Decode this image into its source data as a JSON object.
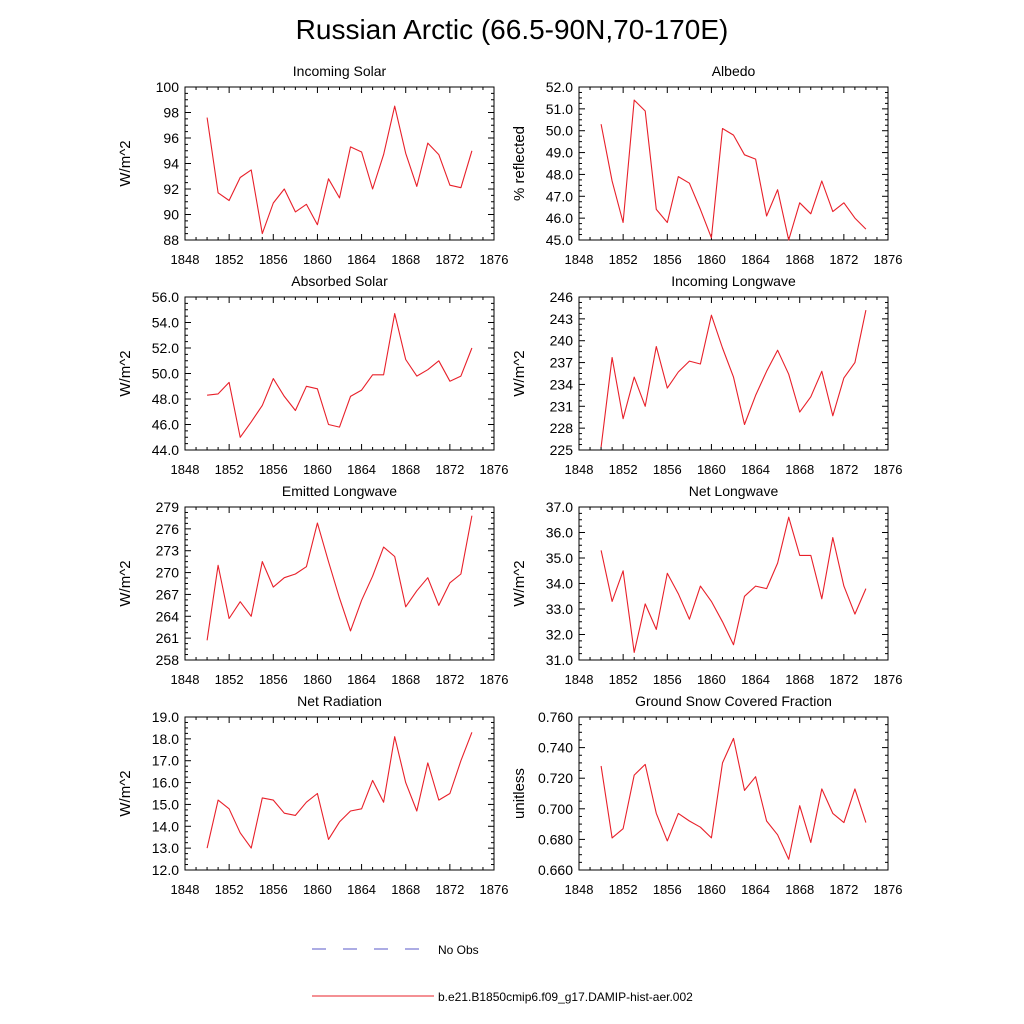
{
  "title": "Russian Arctic (66.5-90N,70-170E)",
  "legend": [
    {
      "label": "No Obs",
      "color": "#5a5ac8",
      "dash": true
    },
    {
      "label": "b.e21.B1850cmip6.f09_g17.DAMIP-hist-aer.002",
      "color": "#e8202a",
      "dash": false
    }
  ],
  "chart_data": [
    {
      "type": "line",
      "title": "Incoming Solar",
      "ylabel": "W/m^2",
      "xlim": [
        1848,
        1876
      ],
      "xticks": [
        1848,
        1852,
        1856,
        1860,
        1864,
        1868,
        1872,
        1876
      ],
      "ylim": [
        88,
        100
      ],
      "yticks": [
        88,
        90,
        92,
        94,
        96,
        98,
        100
      ],
      "ytick_labels": [
        "88",
        "90",
        "92",
        "94",
        "96",
        "98",
        "100"
      ],
      "x": [
        1850,
        1851,
        1852,
        1853,
        1854,
        1855,
        1856,
        1857,
        1858,
        1859,
        1860,
        1861,
        1862,
        1863,
        1864,
        1865,
        1866,
        1867,
        1868,
        1869,
        1870,
        1871,
        1872,
        1873,
        1874
      ],
      "values": [
        97.6,
        91.7,
        91.1,
        92.9,
        93.5,
        88.5,
        90.9,
        92.0,
        90.2,
        90.8,
        89.2,
        92.8,
        91.3,
        95.3,
        94.9,
        92.0,
        94.7,
        98.5,
        94.8,
        92.2,
        95.6,
        94.7,
        92.3,
        92.1,
        95.0
      ]
    },
    {
      "type": "line",
      "title": "Albedo",
      "ylabel": "% reflected",
      "xlim": [
        1848,
        1876
      ],
      "xticks": [
        1848,
        1852,
        1856,
        1860,
        1864,
        1868,
        1872,
        1876
      ],
      "ylim": [
        45,
        52
      ],
      "yticks": [
        45,
        46,
        47,
        48,
        49,
        50,
        51,
        52
      ],
      "ytick_labels": [
        "45.0",
        "46.0",
        "47.0",
        "48.0",
        "49.0",
        "50.0",
        "51.0",
        "52.0"
      ],
      "x": [
        1850,
        1851,
        1852,
        1853,
        1854,
        1855,
        1856,
        1857,
        1858,
        1859,
        1860,
        1861,
        1862,
        1863,
        1864,
        1865,
        1866,
        1867,
        1868,
        1869,
        1870,
        1871,
        1872,
        1873,
        1874
      ],
      "values": [
        50.3,
        47.7,
        45.8,
        51.4,
        50.9,
        46.4,
        45.8,
        47.9,
        47.6,
        46.4,
        45.1,
        50.1,
        49.8,
        48.9,
        48.7,
        46.1,
        47.3,
        45.0,
        46.7,
        46.2,
        47.7,
        46.3,
        46.7,
        46.0,
        45.5
      ]
    },
    {
      "type": "line",
      "title": "Absorbed Solar",
      "ylabel": "W/m^2",
      "xlim": [
        1848,
        1876
      ],
      "xticks": [
        1848,
        1852,
        1856,
        1860,
        1864,
        1868,
        1872,
        1876
      ],
      "ylim": [
        44,
        56
      ],
      "yticks": [
        44,
        46,
        48,
        50,
        52,
        54,
        56
      ],
      "ytick_labels": [
        "44.0",
        "46.0",
        "48.0",
        "50.0",
        "52.0",
        "54.0",
        "56.0"
      ],
      "x": [
        1850,
        1851,
        1852,
        1853,
        1854,
        1855,
        1856,
        1857,
        1858,
        1859,
        1860,
        1861,
        1862,
        1863,
        1864,
        1865,
        1866,
        1867,
        1868,
        1869,
        1870,
        1871,
        1872,
        1873,
        1874
      ],
      "values": [
        48.3,
        48.4,
        49.3,
        45.0,
        46.2,
        47.5,
        49.6,
        48.2,
        47.1,
        49.0,
        48.8,
        46.0,
        45.8,
        48.2,
        48.7,
        49.9,
        49.9,
        54.7,
        51.1,
        49.8,
        50.3,
        51.0,
        49.4,
        49.8,
        52.0
      ]
    },
    {
      "type": "line",
      "title": "Incoming Longwave",
      "ylabel": "W/m^2",
      "xlim": [
        1848,
        1876
      ],
      "xticks": [
        1848,
        1852,
        1856,
        1860,
        1864,
        1868,
        1872,
        1876
      ],
      "ylim": [
        225,
        246
      ],
      "yticks": [
        225,
        228,
        231,
        234,
        237,
        240,
        243,
        246
      ],
      "ytick_labels": [
        "225",
        "228",
        "231",
        "234",
        "237",
        "240",
        "243",
        "246"
      ],
      "x": [
        1850,
        1851,
        1852,
        1853,
        1854,
        1855,
        1856,
        1857,
        1858,
        1859,
        1860,
        1861,
        1862,
        1863,
        1864,
        1865,
        1866,
        1867,
        1868,
        1869,
        1870,
        1871,
        1872,
        1873,
        1874
      ],
      "values": [
        225.4,
        237.7,
        229.3,
        235.0,
        231.0,
        239.2,
        233.5,
        235.7,
        237.2,
        236.8,
        243.5,
        239.0,
        235.0,
        228.5,
        232.5,
        235.8,
        238.7,
        235.4,
        230.2,
        232.3,
        235.8,
        229.7,
        234.9,
        237.0,
        244.2
      ]
    },
    {
      "type": "line",
      "title": "Emitted Longwave",
      "ylabel": "W/m^2",
      "xlim": [
        1848,
        1876
      ],
      "xticks": [
        1848,
        1852,
        1856,
        1860,
        1864,
        1868,
        1872,
        1876
      ],
      "ylim": [
        258,
        279
      ],
      "yticks": [
        258,
        261,
        264,
        267,
        270,
        273,
        276,
        279
      ],
      "ytick_labels": [
        "258",
        "261",
        "264",
        "267",
        "270",
        "273",
        "276",
        "279"
      ],
      "x": [
        1850,
        1851,
        1852,
        1853,
        1854,
        1855,
        1856,
        1857,
        1858,
        1859,
        1860,
        1861,
        1862,
        1863,
        1864,
        1865,
        1866,
        1867,
        1868,
        1869,
        1870,
        1871,
        1872,
        1873,
        1874
      ],
      "values": [
        260.7,
        271.0,
        263.7,
        266.0,
        264.0,
        271.5,
        268.0,
        269.3,
        269.8,
        270.8,
        276.8,
        271.5,
        266.5,
        262.0,
        266.2,
        269.5,
        273.5,
        272.2,
        265.3,
        267.5,
        269.3,
        265.5,
        268.6,
        269.8,
        277.8
      ]
    },
    {
      "type": "line",
      "title": "Net Longwave",
      "ylabel": "W/m^2",
      "xlim": [
        1848,
        1876
      ],
      "xticks": [
        1848,
        1852,
        1856,
        1860,
        1864,
        1868,
        1872,
        1876
      ],
      "ylim": [
        31,
        37
      ],
      "yticks": [
        31,
        32,
        33,
        34,
        35,
        36,
        37
      ],
      "ytick_labels": [
        "31.0",
        "32.0",
        "33.0",
        "34.0",
        "35.0",
        "36.0",
        "37.0"
      ],
      "x": [
        1850,
        1851,
        1852,
        1853,
        1854,
        1855,
        1856,
        1857,
        1858,
        1859,
        1860,
        1861,
        1862,
        1863,
        1864,
        1865,
        1866,
        1867,
        1868,
        1869,
        1870,
        1871,
        1872,
        1873,
        1874
      ],
      "values": [
        35.3,
        33.3,
        34.5,
        31.3,
        33.2,
        32.2,
        34.4,
        33.6,
        32.6,
        33.9,
        33.3,
        32.5,
        31.6,
        33.5,
        33.9,
        33.8,
        34.8,
        36.6,
        35.1,
        35.1,
        33.4,
        35.8,
        33.9,
        32.8,
        33.8
      ]
    },
    {
      "type": "line",
      "title": "Net Radiation",
      "ylabel": "W/m^2",
      "xlim": [
        1848,
        1876
      ],
      "xticks": [
        1848,
        1852,
        1856,
        1860,
        1864,
        1868,
        1872,
        1876
      ],
      "ylim": [
        12,
        19
      ],
      "yticks": [
        12,
        13,
        14,
        15,
        16,
        17,
        18,
        19
      ],
      "ytick_labels": [
        "12.0",
        "13.0",
        "14.0",
        "15.0",
        "16.0",
        "17.0",
        "18.0",
        "19.0"
      ],
      "x": [
        1850,
        1851,
        1852,
        1853,
        1854,
        1855,
        1856,
        1857,
        1858,
        1859,
        1860,
        1861,
        1862,
        1863,
        1864,
        1865,
        1866,
        1867,
        1868,
        1869,
        1870,
        1871,
        1872,
        1873,
        1874
      ],
      "values": [
        13.0,
        15.2,
        14.8,
        13.7,
        13.0,
        15.3,
        15.2,
        14.6,
        14.5,
        15.1,
        15.5,
        13.4,
        14.2,
        14.7,
        14.8,
        16.1,
        15.1,
        18.1,
        16.0,
        14.7,
        16.9,
        15.2,
        15.5,
        17.0,
        18.3
      ]
    },
    {
      "type": "line",
      "title": "Ground Snow Covered Fraction",
      "ylabel": "unitless",
      "xlim": [
        1848,
        1876
      ],
      "xticks": [
        1848,
        1852,
        1856,
        1860,
        1864,
        1868,
        1872,
        1876
      ],
      "ylim": [
        0.66,
        0.76
      ],
      "yticks": [
        0.66,
        0.68,
        0.7,
        0.72,
        0.74,
        0.76
      ],
      "ytick_labels": [
        "0.660",
        "0.680",
        "0.700",
        "0.720",
        "0.740",
        "0.760"
      ],
      "x": [
        1850,
        1851,
        1852,
        1853,
        1854,
        1855,
        1856,
        1857,
        1858,
        1859,
        1860,
        1861,
        1862,
        1863,
        1864,
        1865,
        1866,
        1867,
        1868,
        1869,
        1870,
        1871,
        1872,
        1873,
        1874
      ],
      "values": [
        0.728,
        0.681,
        0.687,
        0.722,
        0.729,
        0.697,
        0.679,
        0.697,
        0.692,
        0.688,
        0.681,
        0.73,
        0.746,
        0.712,
        0.721,
        0.692,
        0.683,
        0.667,
        0.702,
        0.678,
        0.713,
        0.697,
        0.691,
        0.713,
        0.691
      ]
    }
  ]
}
